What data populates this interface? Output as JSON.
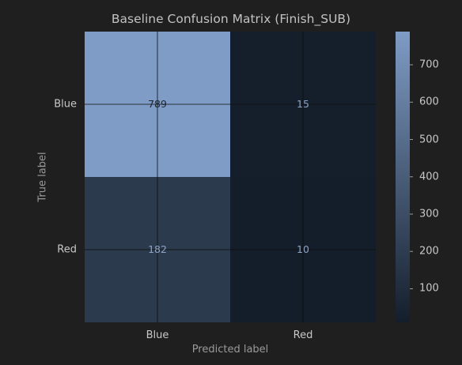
{
  "chart_data": {
    "type": "heatmap",
    "title": "Baseline Confusion Matrix (Finish_SUB)",
    "xlabel": "Predicted label",
    "ylabel": "True label",
    "x_categories": [
      "Blue",
      "Red"
    ],
    "y_categories": [
      "Blue",
      "Red"
    ],
    "values": [
      [
        789,
        15
      ],
      [
        182,
        10
      ]
    ],
    "colorbar": {
      "min": 10,
      "max": 789,
      "ticks": [
        100,
        200,
        300,
        400,
        500,
        600,
        700
      ],
      "color_low": "#141e2b",
      "color_high": "#7f9cc6"
    },
    "grid": true
  },
  "colors": {
    "background": "#1f1f1f",
    "text_dark": "#1d2430",
    "text_light": "#8ea4c4"
  }
}
